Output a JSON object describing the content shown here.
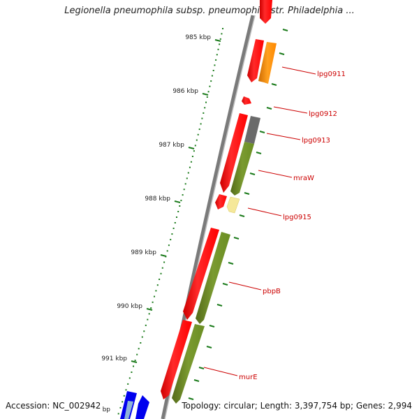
{
  "title": "Legionella pneumophila subsp. pneumophila str. Philadelphia ...",
  "footer": {
    "accession": "Accession: NC_002942",
    "summary": "Topology: circular; Length: 3,397,754 bp; Genes: 2,994"
  },
  "ruler": {
    "labels": [
      "985 kbp",
      "986 kbp",
      "987 kbp",
      "988 kbp",
      "989 kbp",
      "990 kbp",
      "991 kbp"
    ],
    "cut_label": "bp"
  },
  "genes": [
    {
      "name": "lpg0911",
      "label": "lpg0911",
      "color": "#ff8800",
      "kind": "other"
    },
    {
      "name": "lpg0912",
      "label": "lpg0912",
      "color": "#ff0000",
      "kind": "cds"
    },
    {
      "name": "lpg0913",
      "label": "lpg0913",
      "color": "#666666",
      "kind": "other"
    },
    {
      "name": "mraW",
      "label": "mraW",
      "color": "#6b8e23",
      "kind": "other"
    },
    {
      "name": "lpg0915",
      "label": "lpg0915",
      "color": "#f5e89a",
      "kind": "other"
    },
    {
      "name": "pbpB",
      "label": "pbpB",
      "color": "#6b8e23",
      "kind": "other"
    },
    {
      "name": "murE",
      "label": "murE",
      "color": "#6b8e23",
      "kind": "other"
    }
  ],
  "colors": {
    "cds": "#ff0000",
    "gene": "#6b8e23",
    "backbone": "#808080",
    "tick": "#1a7a1a",
    "label_line": "#cc0000",
    "blue": "#0000ee"
  }
}
